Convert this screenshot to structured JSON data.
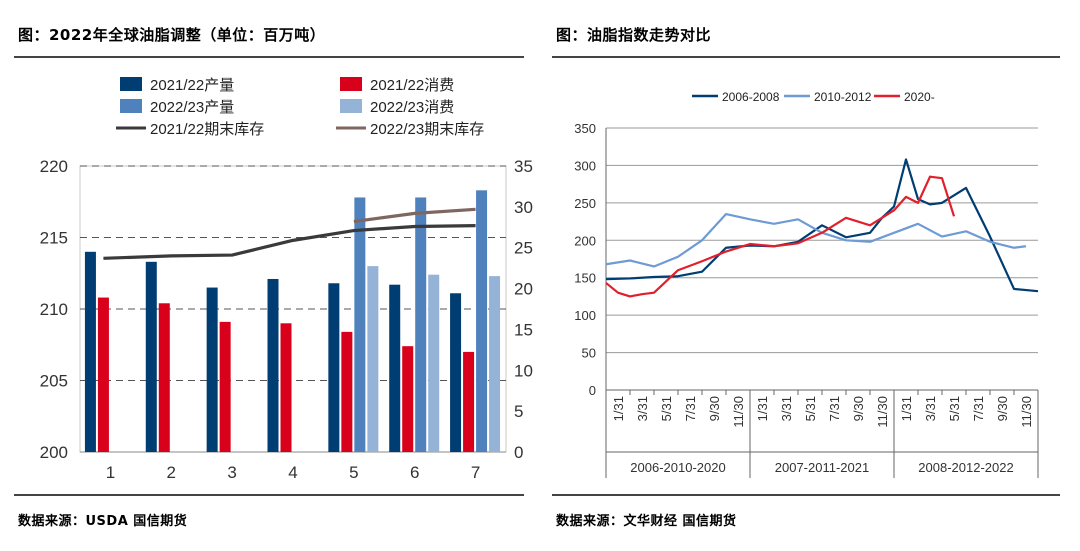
{
  "left": {
    "title": "图：2022年全球油脂调整（单位：百万吨）",
    "source": "数据来源：USDA  国信期货"
  },
  "right": {
    "title": "图：油脂指数走势对比",
    "source": "数据来源：文华财经   国信期货"
  },
  "colors": {
    "dark_navy": "#003D73",
    "red": "#D9001B",
    "mid_blue": "#4F81BD",
    "light_blue": "#95B3D7",
    "dark_gray": "#3A3A3A",
    "brown": "#7F6660",
    "series_2010": "#6E9BD3",
    "series_2020": "#E0202A"
  },
  "chart_data": [
    {
      "type": "bar",
      "categories": [
        "1",
        "2",
        "3",
        "4",
        "5",
        "6",
        "7"
      ],
      "y_left": {
        "min": 200,
        "max": 220,
        "ticks": [
          200,
          205,
          210,
          215,
          220
        ]
      },
      "y_right": {
        "min": 0,
        "max": 35,
        "ticks": [
          0,
          5,
          10,
          15,
          20,
          25,
          30,
          35
        ]
      },
      "series": [
        {
          "name": "2021/22产量",
          "axis": "left",
          "values": [
            214.0,
            213.3,
            211.5,
            212.1,
            211.8,
            211.7,
            211.1
          ]
        },
        {
          "name": "2021/22消费",
          "axis": "left",
          "values": [
            210.8,
            210.4,
            209.1,
            209.0,
            208.4,
            207.4,
            207.0
          ]
        },
        {
          "name": "2022/23产量",
          "axis": "left",
          "values": [
            null,
            null,
            null,
            null,
            217.8,
            217.8,
            218.3
          ]
        },
        {
          "name": "2022/23消费",
          "axis": "left",
          "values": [
            null,
            null,
            null,
            null,
            213.0,
            212.4,
            212.3
          ]
        },
        {
          "name": "2021/22期末库存",
          "axis": "right",
          "kind": "line",
          "values": [
            23.7,
            24.0,
            24.1,
            25.9,
            27.1,
            27.6,
            27.7
          ]
        },
        {
          "name": "2022/23期末库存",
          "axis": "right",
          "kind": "line",
          "values": [
            null,
            null,
            null,
            null,
            28.2,
            29.2,
            29.7
          ]
        }
      ]
    },
    {
      "type": "line",
      "ylim": [
        0,
        350
      ],
      "yticks": [
        0,
        50,
        100,
        150,
        200,
        250,
        300,
        350
      ],
      "xticks": [
        "1/31",
        "3/31",
        "5/31",
        "7/31",
        "9/30",
        "11/30",
        "1/31",
        "3/31",
        "5/31",
        "7/31",
        "9/30",
        "11/30",
        "1/31",
        "3/31",
        "5/31",
        "7/31",
        "9/30",
        "11/30"
      ],
      "groups": [
        "2006-2010-2020",
        "2007-2011-2021",
        "2008-2012-2022"
      ],
      "x_months": 36,
      "series": [
        {
          "name": "2006-2008",
          "x": [
            0,
            2,
            4,
            6,
            8,
            10,
            12,
            14,
            16,
            18,
            20,
            22,
            23,
            24,
            25,
            26,
            27,
            28,
            30,
            32,
            34,
            36
          ],
          "y": [
            148,
            149,
            151,
            152,
            158,
            190,
            193,
            192,
            198,
            220,
            204,
            210,
            230,
            245,
            308,
            255,
            248,
            250,
            270,
            205,
            135,
            132
          ]
        },
        {
          "name": "2010-2012",
          "x": [
            0,
            2,
            4,
            6,
            8,
            10,
            12,
            14,
            16,
            18,
            20,
            22,
            24,
            26,
            28,
            30,
            32,
            34,
            35
          ],
          "y": [
            168,
            173,
            165,
            178,
            200,
            235,
            228,
            222,
            228,
            210,
            200,
            198,
            210,
            222,
            205,
            212,
            198,
            190,
            192
          ]
        },
        {
          "name": "2020-",
          "x": [
            0,
            1,
            2,
            3,
            4,
            6,
            8,
            10,
            12,
            14,
            16,
            18,
            20,
            22,
            24,
            25,
            26,
            27,
            28,
            29
          ],
          "y": [
            143,
            130,
            125,
            128,
            130,
            160,
            172,
            185,
            195,
            192,
            196,
            210,
            230,
            220,
            240,
            258,
            250,
            285,
            283,
            232
          ]
        }
      ]
    }
  ]
}
